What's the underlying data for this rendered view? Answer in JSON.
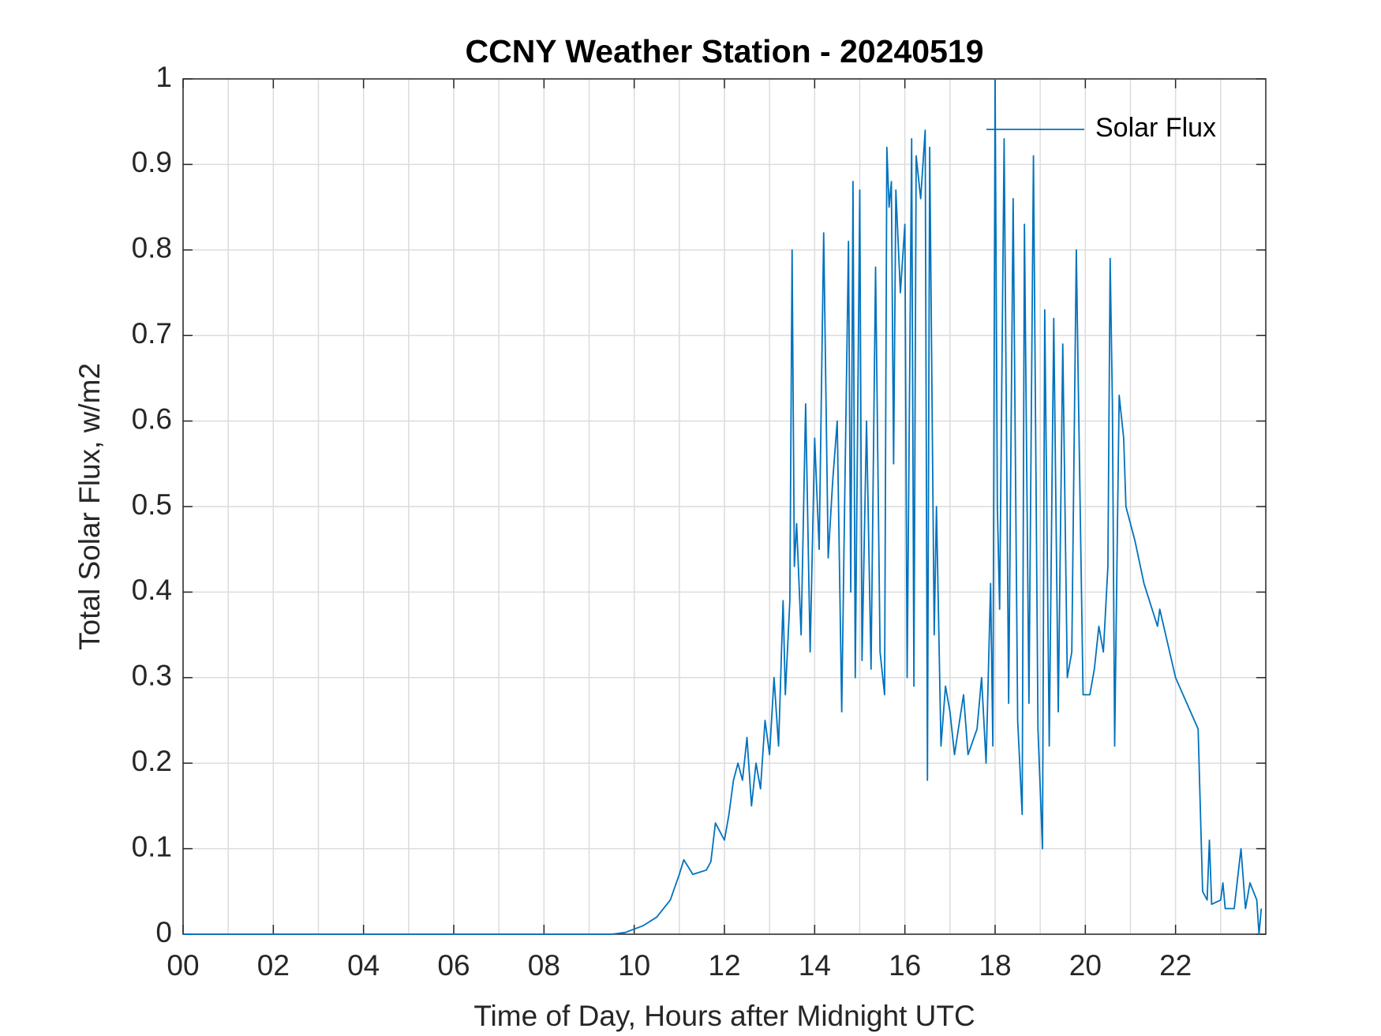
{
  "chart_data": {
    "type": "line",
    "title": "CCNY Weather Station - 20240519",
    "xlabel": "Time of Day, Hours after Midnight UTC",
    "ylabel": "Total Solar Flux, w/m2",
    "x": [
      0,
      9.5,
      9.8,
      10.2,
      10.5,
      10.8,
      11.0,
      11.1,
      11.3,
      11.6,
      11.7,
      11.8,
      12.0,
      12.1,
      12.2,
      12.3,
      12.4,
      12.5,
      12.6,
      12.7,
      12.8,
      12.9,
      13.0,
      13.1,
      13.2,
      13.3,
      13.35,
      13.45,
      13.5,
      13.55,
      13.6,
      13.7,
      13.8,
      13.9,
      14.0,
      14.1,
      14.2,
      14.3,
      14.4,
      14.5,
      14.6,
      14.65,
      14.75,
      14.8,
      14.85,
      14.9,
      15.0,
      15.05,
      15.15,
      15.25,
      15.35,
      15.45,
      15.55,
      15.6,
      15.65,
      15.7,
      15.75,
      15.8,
      15.9,
      16.0,
      16.05,
      16.15,
      16.2,
      16.25,
      16.35,
      16.45,
      16.5,
      16.55,
      16.65,
      16.7,
      16.8,
      16.9,
      17.0,
      17.1,
      17.3,
      17.4,
      17.6,
      17.7,
      17.8,
      17.9,
      17.95,
      18.0,
      18.05,
      18.1,
      18.2,
      18.3,
      18.4,
      18.5,
      18.6,
      18.65,
      18.75,
      18.85,
      18.95,
      19.05,
      19.1,
      19.2,
      19.3,
      19.4,
      19.5,
      19.6,
      19.7,
      19.8,
      19.85,
      19.95,
      20.1,
      20.2,
      20.3,
      20.4,
      20.5,
      20.55,
      20.6,
      20.65,
      20.7,
      20.75,
      20.85,
      20.9,
      21.1,
      21.3,
      21.6,
      21.65,
      22.0,
      22.5,
      22.6,
      22.7,
      22.75,
      22.8,
      23.0,
      23.05,
      23.1,
      23.3,
      23.45,
      23.55,
      23.65,
      23.8,
      23.85,
      23.9
    ],
    "series": [
      {
        "name": "Solar Flux",
        "color": "#0072bd",
        "values": [
          0,
          0,
          0.002,
          0.01,
          0.02,
          0.04,
          0.07,
          0.087,
          0.07,
          0.075,
          0.085,
          0.13,
          0.11,
          0.14,
          0.18,
          0.2,
          0.18,
          0.23,
          0.15,
          0.2,
          0.17,
          0.25,
          0.21,
          0.3,
          0.22,
          0.39,
          0.28,
          0.39,
          0.8,
          0.43,
          0.48,
          0.35,
          0.62,
          0.33,
          0.58,
          0.45,
          0.82,
          0.44,
          0.53,
          0.6,
          0.26,
          0.45,
          0.81,
          0.4,
          0.88,
          0.3,
          0.87,
          0.32,
          0.6,
          0.31,
          0.78,
          0.33,
          0.28,
          0.92,
          0.85,
          0.88,
          0.55,
          0.87,
          0.75,
          0.83,
          0.3,
          0.93,
          0.29,
          0.91,
          0.86,
          0.94,
          0.18,
          0.92,
          0.35,
          0.5,
          0.22,
          0.29,
          0.26,
          0.21,
          0.28,
          0.21,
          0.24,
          0.3,
          0.2,
          0.41,
          0.22,
          1.0,
          0.5,
          0.38,
          0.93,
          0.27,
          0.86,
          0.25,
          0.14,
          0.83,
          0.27,
          0.91,
          0.24,
          0.1,
          0.73,
          0.22,
          0.72,
          0.26,
          0.69,
          0.3,
          0.33,
          0.8,
          0.62,
          0.28,
          0.28,
          0.31,
          0.36,
          0.33,
          0.43,
          0.79,
          0.62,
          0.22,
          0.43,
          0.63,
          0.58,
          0.5,
          0.46,
          0.41,
          0.36,
          0.38,
          0.3,
          0.24,
          0.05,
          0.04,
          0.11,
          0.035,
          0.04,
          0.06,
          0.03,
          0.03,
          0.1,
          0.03,
          0.06,
          0.04,
          0.0,
          0.03
        ]
      }
    ],
    "xlim": [
      0,
      24
    ],
    "xticks": [
      {
        "value": 0,
        "label": "00"
      },
      {
        "value": 2,
        "label": "02"
      },
      {
        "value": 4,
        "label": "04"
      },
      {
        "value": 6,
        "label": "06"
      },
      {
        "value": 8,
        "label": "08"
      },
      {
        "value": 10,
        "label": "10"
      },
      {
        "value": 12,
        "label": "12"
      },
      {
        "value": 14,
        "label": "14"
      },
      {
        "value": 16,
        "label": "16"
      },
      {
        "value": 18,
        "label": "18"
      },
      {
        "value": 20,
        "label": "20"
      },
      {
        "value": 22,
        "label": "22"
      }
    ],
    "xminorticks": [
      1,
      3,
      5,
      7,
      9,
      11,
      13,
      15,
      17,
      19,
      21,
      23
    ],
    "ylim": [
      0,
      1
    ],
    "yticks": [
      0,
      0.1,
      0.2,
      0.3,
      0.4,
      0.5,
      0.6,
      0.7,
      0.8,
      0.9,
      1
    ],
    "grid": true,
    "legend": "top-right"
  }
}
